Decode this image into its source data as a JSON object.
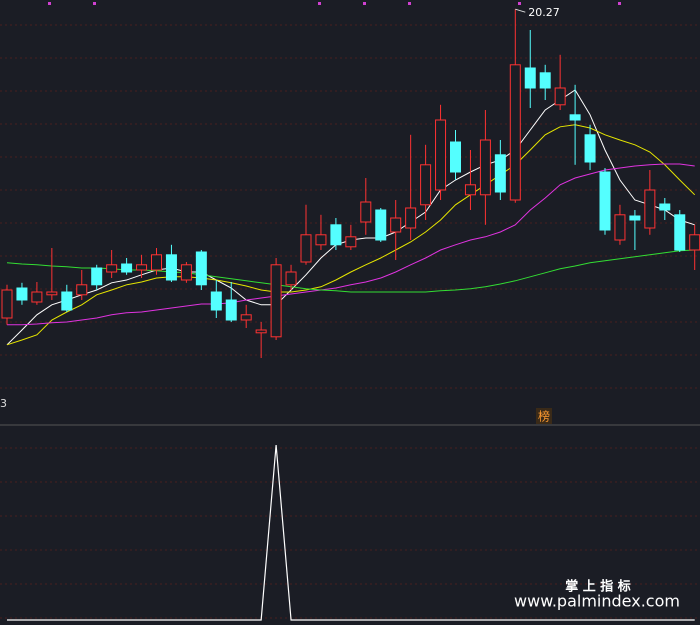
{
  "chart_data": [
    {
      "type": "candlestick",
      "open": [
        12.55,
        13.3,
        12.95,
        13.13,
        13.2,
        13.13,
        13.8,
        13.7,
        13.9,
        13.75,
        13.75,
        14.13,
        13.5,
        14.2,
        13.2,
        13.0,
        12.5,
        12.18,
        12.08,
        13.38,
        13.95,
        14.38,
        14.88,
        14.33,
        14.95,
        15.25,
        14.7,
        14.8,
        15.38,
        15.75,
        16.95,
        15.63,
        15.63,
        16.63,
        15.5,
        18.8,
        18.68,
        17.88,
        17.63,
        17.13,
        16.2,
        14.5,
        15.1,
        14.8,
        15.4,
        15.13,
        14.25
      ],
      "high": [
        13.38,
        13.43,
        13.45,
        14.3,
        13.38,
        13.75,
        13.88,
        14.25,
        14.05,
        14.13,
        14.3,
        14.38,
        13.95,
        14.25,
        13.5,
        13.45,
        12.88,
        12.45,
        14.05,
        13.88,
        15.38,
        15.13,
        15.05,
        14.88,
        16.05,
        15.3,
        15.5,
        17.13,
        16.88,
        17.88,
        17.25,
        16.75,
        17.75,
        17.0,
        20.27,
        19.75,
        18.88,
        19.13,
        18.38,
        17.38,
        16.3,
        15.38,
        15.25,
        16.25,
        15.55,
        15.25,
        14.88
      ],
      "low": [
        12.38,
        12.88,
        12.88,
        13.0,
        12.7,
        13.0,
        13.25,
        13.55,
        13.63,
        13.55,
        13.63,
        13.45,
        13.43,
        13.25,
        12.55,
        12.45,
        12.3,
        11.55,
        12.0,
        13.25,
        13.88,
        14.25,
        14.25,
        14.25,
        14.63,
        14.45,
        14.0,
        14.5,
        15.0,
        15.5,
        16.0,
        15.25,
        14.88,
        15.5,
        15.43,
        17.8,
        18.0,
        17.75,
        16.38,
        16.25,
        14.63,
        14.38,
        14.25,
        14.63,
        15.0,
        14.2,
        13.75
      ],
      "close": [
        13.25,
        13.0,
        13.2,
        13.2,
        12.75,
        13.38,
        13.38,
        13.88,
        13.7,
        13.88,
        14.13,
        13.5,
        13.88,
        13.38,
        12.75,
        12.5,
        12.63,
        12.25,
        13.88,
        13.7,
        14.63,
        14.63,
        14.38,
        14.58,
        15.45,
        14.5,
        15.05,
        15.3,
        16.38,
        17.5,
        16.2,
        15.88,
        17.0,
        15.7,
        18.88,
        18.3,
        18.3,
        18.3,
        17.5,
        16.45,
        14.75,
        15.13,
        15.0,
        15.75,
        15.25,
        14.25,
        14.63
      ],
      "up_color": "#ff3232",
      "down_color": "#54ffff",
      "series": [
        {
          "color": "#ffffff",
          "values": [
            11.88,
            12.25,
            12.63,
            12.88,
            13.0,
            13.13,
            13.25,
            13.43,
            13.5,
            13.63,
            13.75,
            13.8,
            13.7,
            13.7,
            13.5,
            13.3,
            13.0,
            12.88,
            12.88,
            13.25,
            13.63,
            14.05,
            14.38,
            14.5,
            14.55,
            14.55,
            14.7,
            14.95,
            15.2,
            15.75,
            16.0,
            16.2,
            16.38,
            16.5,
            16.75,
            17.25,
            17.75,
            18.0,
            18.25,
            17.63,
            16.75,
            16.0,
            15.5,
            15.38,
            15.25,
            15.0,
            14.88
          ]
        },
        {
          "color": "#e6e600",
          "values": [
            11.88,
            12.0,
            12.13,
            12.5,
            12.7,
            12.88,
            13.13,
            13.25,
            13.38,
            13.45,
            13.55,
            13.58,
            13.58,
            13.55,
            13.5,
            13.43,
            13.35,
            13.25,
            13.2,
            13.2,
            13.25,
            13.33,
            13.5,
            13.7,
            13.88,
            14.05,
            14.25,
            14.45,
            14.7,
            15.0,
            15.38,
            15.63,
            15.88,
            16.13,
            16.38,
            16.75,
            17.13,
            17.33,
            17.38,
            17.3,
            17.13,
            17.0,
            16.88,
            16.7,
            16.38,
            16.0,
            15.63
          ]
        },
        {
          "color": "#e033e0",
          "values": [
            12.38,
            12.38,
            12.4,
            12.43,
            12.45,
            12.5,
            12.55,
            12.63,
            12.68,
            12.7,
            12.75,
            12.8,
            12.85,
            12.9,
            12.9,
            12.93,
            13.0,
            13.05,
            13.1,
            13.15,
            13.2,
            13.25,
            13.3,
            13.38,
            13.45,
            13.55,
            13.7,
            13.88,
            14.05,
            14.25,
            14.38,
            14.5,
            14.58,
            14.7,
            14.88,
            15.25,
            15.55,
            15.88,
            16.05,
            16.15,
            16.25,
            16.3,
            16.35,
            16.38,
            16.4,
            16.4,
            16.35
          ]
        },
        {
          "color": "#33dd33",
          "values": [
            13.93,
            13.9,
            13.88,
            13.85,
            13.83,
            13.8,
            13.8,
            13.78,
            13.75,
            13.75,
            13.73,
            13.7,
            13.68,
            13.63,
            13.58,
            13.53,
            13.48,
            13.43,
            13.38,
            13.33,
            13.28,
            13.25,
            13.23,
            13.2,
            13.2,
            13.2,
            13.2,
            13.2,
            13.2,
            13.23,
            13.25,
            13.28,
            13.33,
            13.4,
            13.48,
            13.58,
            13.68,
            13.78,
            13.85,
            13.93,
            13.98,
            14.03,
            14.08,
            14.13,
            14.18,
            14.23,
            14.25
          ]
        }
      ],
      "ylim": [
        9.5,
        20.5
      ],
      "corner_label": "3",
      "tag": "榜"
    },
    {
      "type": "line",
      "color": "#ffffff",
      "values": [
        0,
        0,
        0,
        0,
        0,
        0,
        0,
        0,
        0,
        0,
        0,
        0,
        0,
        0,
        0,
        0,
        0,
        0,
        1,
        0,
        0,
        0,
        0,
        0,
        0,
        0,
        0,
        0,
        0,
        0,
        0,
        0,
        0,
        0,
        0,
        0,
        0,
        0,
        0,
        0,
        0,
        0,
        0,
        0,
        0,
        0,
        0
      ],
      "ylim": [
        0,
        1.1
      ]
    }
  ],
  "watermark": {
    "title": "掌 上 指 标",
    "url": "www.palmindex.com"
  }
}
